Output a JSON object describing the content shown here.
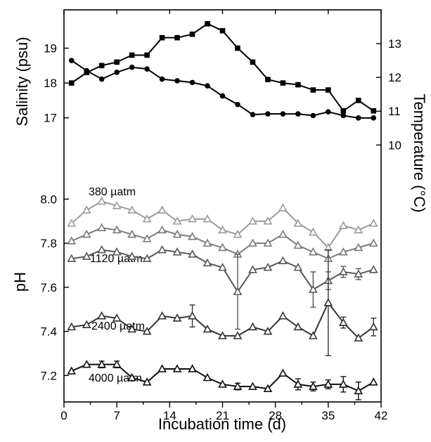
{
  "chart_data": {
    "type": "line",
    "xlabel": "Incubation time (d)",
    "xlim": [
      0,
      42
    ],
    "xticks": [
      0,
      7,
      14,
      21,
      28,
      35,
      42
    ],
    "panels": {
      "upper": {
        "left_axis": {
          "label": "Salinity (psu)",
          "lim": [
            15.3,
            20.1
          ],
          "ticks": [
            17,
            18,
            19
          ]
        },
        "right_axis": {
          "label": "Temperature (°C)",
          "lim": [
            9.05,
            14.0
          ],
          "ticks": [
            10,
            11,
            12,
            13
          ]
        },
        "series": [
          {
            "axis": "left",
            "marker": "square",
            "color": "#000000",
            "x": [
              1,
              3,
              5,
              7,
              9,
              11,
              13,
              15,
              17,
              19,
              21,
              23,
              25,
              27,
              29,
              31,
              33,
              35,
              37,
              39,
              41
            ],
            "y": [
              18.0,
              18.3,
              18.5,
              18.6,
              18.8,
              18.8,
              19.3,
              19.3,
              19.4,
              19.7,
              19.5,
              19.0,
              18.6,
              18.1,
              18.0,
              17.95,
              17.8,
              17.8,
              17.2,
              17.5,
              17.2
            ]
          },
          {
            "axis": "right",
            "marker": "circle",
            "color": "#000000",
            "x": [
              1,
              3,
              5,
              7,
              9,
              11,
              13,
              15,
              17,
              19,
              21,
              23,
              25,
              27,
              29,
              31,
              33,
              35,
              37,
              39,
              41
            ],
            "y": [
              12.5,
              12.2,
              11.95,
              12.15,
              12.3,
              12.25,
              11.95,
              11.9,
              11.85,
              11.75,
              11.45,
              11.2,
              10.9,
              10.92,
              10.92,
              10.92,
              10.87,
              10.98,
              10.87,
              10.8,
              10.8
            ]
          }
        ]
      },
      "lower": {
        "left_axis": {
          "label": "pH",
          "lim": [
            7.08,
            8.1
          ],
          "ticks": [
            7.2,
            7.4,
            7.6,
            7.8,
            8.0
          ]
        },
        "series": [
          {
            "name": "380 µatm",
            "marker": "triangle-open",
            "color": "#9a9a9a",
            "x": [
              1,
              3,
              5,
              7,
              9,
              11,
              13,
              15,
              17,
              19,
              21,
              23,
              25,
              27,
              29,
              31,
              33,
              35,
              37,
              39,
              41
            ],
            "y": [
              7.89,
              7.95,
              7.99,
              7.97,
              7.95,
              7.91,
              7.95,
              7.9,
              7.91,
              7.91,
              7.86,
              7.84,
              7.9,
              7.9,
              7.96,
              7.89,
              7.85,
              7.78,
              7.88,
              7.86,
              7.89
            ]
          },
          {
            "name": "",
            "marker": "triangle-open",
            "color": "#7a7a7a",
            "x": [
              1,
              3,
              5,
              7,
              9,
              11,
              13,
              15,
              17,
              19,
              21,
              23,
              25,
              27,
              29,
              31,
              33,
              35,
              37,
              39,
              41
            ],
            "y": [
              7.81,
              7.84,
              7.87,
              7.86,
              7.84,
              7.82,
              7.86,
              7.84,
              7.83,
              7.8,
              7.78,
              7.75,
              7.8,
              7.8,
              7.84,
              7.79,
              7.76,
              7.73,
              7.76,
              7.78,
              7.8
            ]
          },
          {
            "name": "1120 µatm",
            "marker": "triangle-open",
            "color": "#575757",
            "x": [
              1,
              3,
              5,
              7,
              9,
              11,
              13,
              15,
              17,
              19,
              21,
              23,
              25,
              27,
              29,
              31,
              33,
              35,
              37,
              39,
              41
            ],
            "y": [
              7.73,
              7.74,
              7.77,
              7.76,
              7.74,
              7.73,
              7.77,
              7.76,
              7.75,
              7.71,
              7.69,
              7.58,
              7.68,
              7.69,
              7.72,
              7.69,
              7.59,
              7.63,
              7.67,
              7.66,
              7.68
            ],
            "err": [
              0,
              0,
              0,
              0,
              0,
              0,
              0,
              0,
              0,
              0,
              0,
              0.17,
              0,
              0,
              0,
              0,
              0.08,
              0.04,
              0.025,
              0.025,
              0
            ]
          },
          {
            "name": "2400 µatm",
            "marker": "triangle-open",
            "color": "#333333",
            "x": [
              1,
              3,
              5,
              7,
              9,
              11,
              13,
              15,
              17,
              19,
              21,
              23,
              25,
              27,
              29,
              31,
              33,
              35,
              37,
              39,
              41
            ],
            "y": [
              7.42,
              7.43,
              7.47,
              7.46,
              7.41,
              7.4,
              7.47,
              7.46,
              7.47,
              7.41,
              7.38,
              7.38,
              7.42,
              7.4,
              7.47,
              7.42,
              7.38,
              7.53,
              7.44,
              7.37,
              7.42
            ],
            "err": [
              0,
              0,
              0,
              0,
              0,
              0,
              0,
              0,
              0.05,
              0,
              0,
              0,
              0,
              0,
              0,
              0,
              0,
              0.24,
              0.025,
              0,
              0.04
            ]
          },
          {
            "name": "4000 µatm",
            "marker": "triangle-open",
            "color": "#111111",
            "x": [
              1,
              3,
              5,
              7,
              9,
              11,
              13,
              15,
              17,
              19,
              21,
              23,
              25,
              27,
              29,
              31,
              33,
              35,
              37,
              39,
              41
            ],
            "y": [
              7.22,
              7.25,
              7.25,
              7.25,
              7.19,
              7.17,
              7.23,
              7.23,
              7.23,
              7.19,
              7.16,
              7.15,
              7.15,
              7.14,
              7.21,
              7.16,
              7.15,
              7.16,
              7.16,
              7.13,
              7.17
            ],
            "err": [
              0,
              0,
              0.015,
              0.015,
              0,
              0,
              0,
              0,
              0,
              0,
              0,
              0.015,
              0,
              0,
              0,
              0.025,
              0.02,
              0.02,
              0.035,
              0.04,
              0
            ]
          }
        ]
      }
    }
  }
}
